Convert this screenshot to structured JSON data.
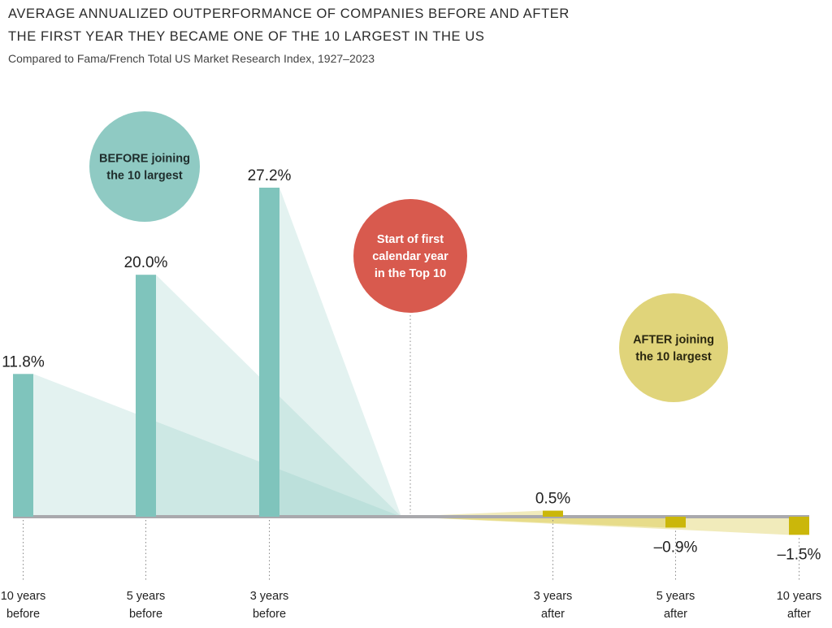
{
  "title_line1": "AVERAGE ANNUALIZED OUTPERFORMANCE OF COMPANIES BEFORE AND AFTER",
  "title_line2": "THE FIRST YEAR THEY BECAME ONE OF THE 10 LARGEST IN THE US",
  "subtitle": "Compared to Fama/French Total US Market Research Index, 1927–2023",
  "colors": {
    "before": "#7fc4bc",
    "after": "#cbb70a",
    "before_bubble": "#8fcac3",
    "start_bubble": "#d85a4e",
    "after_bubble": "#e0d47a",
    "baseline": "#a9a9ad"
  },
  "bubbles": {
    "before": [
      "BEFORE joining",
      "the 10 largest"
    ],
    "start": [
      "Start of first",
      "calendar year",
      "in the Top 10"
    ],
    "after": [
      "AFTER joining",
      "the 10 largest"
    ]
  },
  "chart_data": {
    "type": "bar",
    "ylabel": "",
    "xlabel": "",
    "categories": [
      "10 years before",
      "5 years before",
      "3 years before",
      "3 years after",
      "5 years after",
      "10 years after"
    ],
    "tick_labels": [
      [
        "10 years",
        "before"
      ],
      [
        "5 years",
        "before"
      ],
      [
        "3 years",
        "before"
      ],
      [
        "3 years",
        "after"
      ],
      [
        "5 years",
        "after"
      ],
      [
        "10 years",
        "after"
      ]
    ],
    "values": [
      11.8,
      20.0,
      27.2,
      0.5,
      -0.9,
      -1.5
    ],
    "value_labels": [
      "11.8%",
      "20.0%",
      "27.2%",
      "0.5%",
      "–0.9%",
      "–1.5%"
    ],
    "groups": [
      "before",
      "before",
      "before",
      "after",
      "after",
      "after"
    ],
    "ylim": [
      -2,
      28
    ],
    "grid": false,
    "legend": "none"
  }
}
